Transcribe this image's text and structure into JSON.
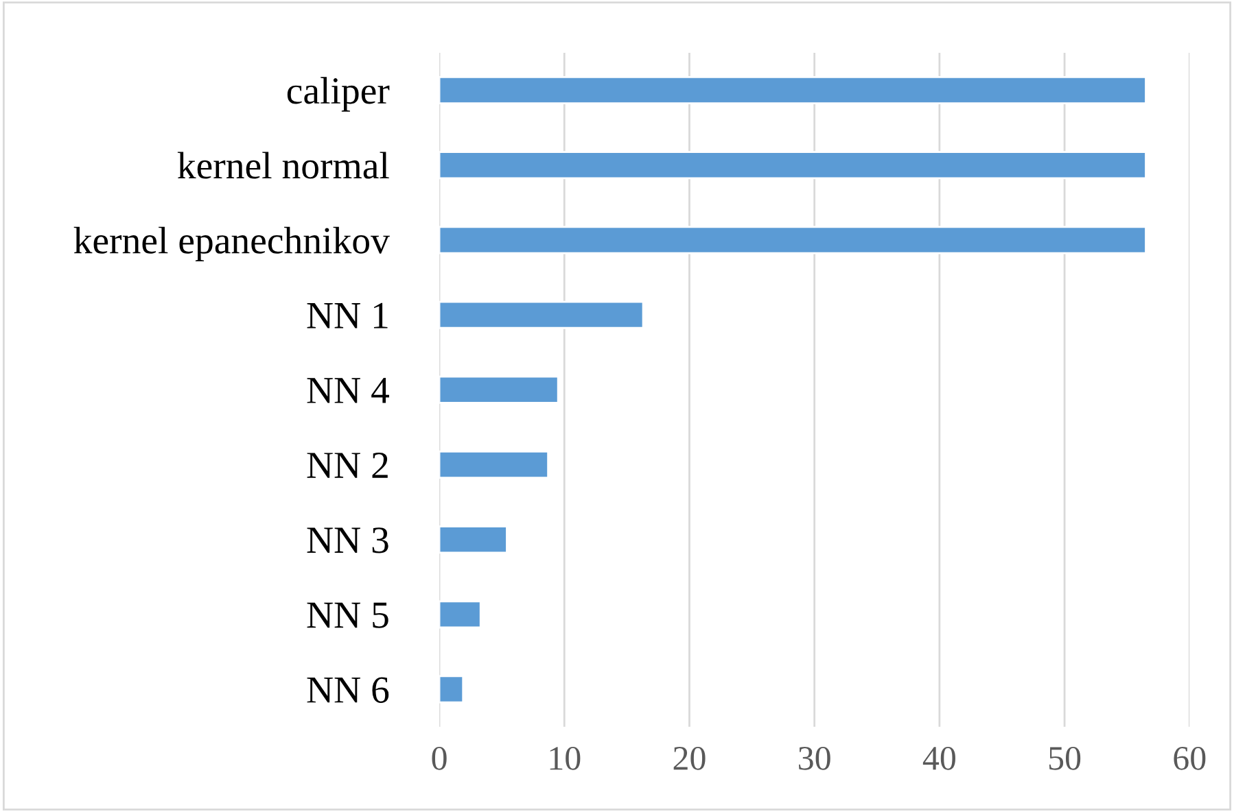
{
  "chart_data": {
    "type": "bar",
    "orientation": "horizontal",
    "categories": [
      "caliper",
      "kernel normal",
      "kernel epanechnikov",
      "NN 1",
      "NN 4",
      "NN 2",
      "NN 3",
      "NN 5",
      "NN 6"
    ],
    "values": [
      56.5,
      56.5,
      56.5,
      16.3,
      9.5,
      8.7,
      5.4,
      3.3,
      1.9
    ],
    "color": "#5b9bd5",
    "xlim": [
      0,
      60
    ],
    "xticks": [
      0,
      10,
      20,
      30,
      40,
      50,
      60
    ],
    "grid": "x"
  }
}
